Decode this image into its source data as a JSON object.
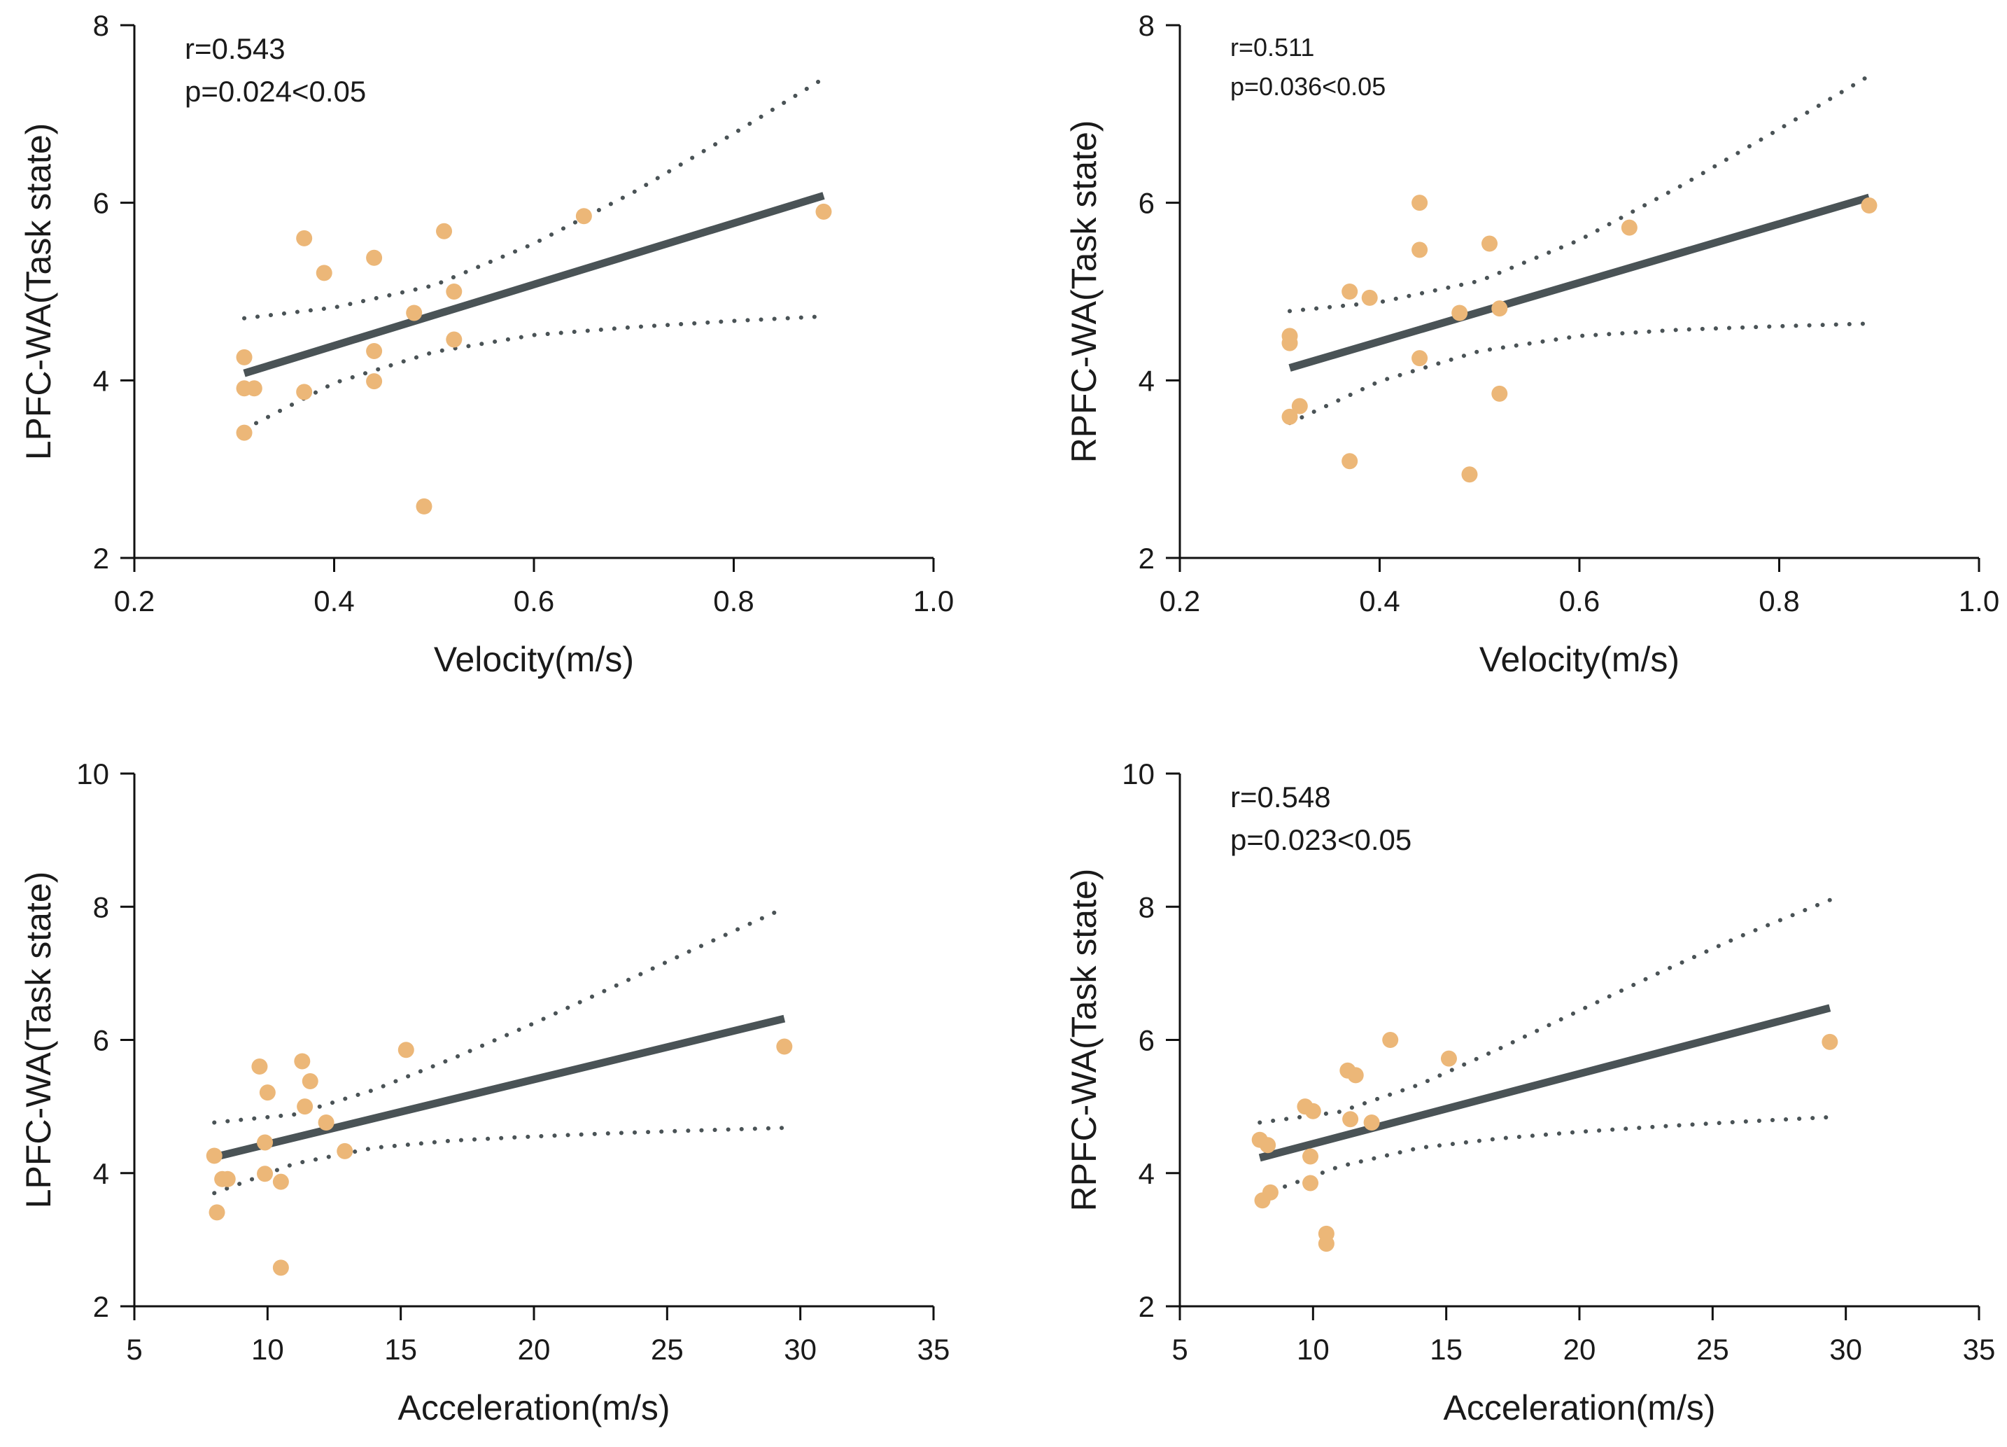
{
  "colors": {
    "point": "#ecb778",
    "line": "#4a5356",
    "axis": "#111111"
  },
  "chart_data": [
    {
      "type": "scatter",
      "xlabel": "Velocity(m/s)",
      "ylabel": "LPFC-WA(Task state)",
      "xlim": [
        0.2,
        1.0
      ],
      "ylim": [
        2,
        8
      ],
      "xticks": [
        0.2,
        0.4,
        0.6,
        0.8,
        1.0
      ],
      "xtick_labels": [
        "0.2",
        "0.4",
        "0.6",
        "0.8",
        "1.0"
      ],
      "yticks": [
        2,
        4,
        6,
        8
      ],
      "ytick_labels": [
        "2",
        "4",
        "6",
        "8"
      ],
      "annotations": [
        "r=0.543",
        "p=0.024<0.05"
      ],
      "annotation_size": "large",
      "points": [
        {
          "x": 0.31,
          "y": 4.26
        },
        {
          "x": 0.31,
          "y": 3.91
        },
        {
          "x": 0.32,
          "y": 3.91
        },
        {
          "x": 0.31,
          "y": 3.41
        },
        {
          "x": 0.37,
          "y": 5.6
        },
        {
          "x": 0.39,
          "y": 5.21
        },
        {
          "x": 0.37,
          "y": 3.87
        },
        {
          "x": 0.44,
          "y": 5.38
        },
        {
          "x": 0.44,
          "y": 4.33
        },
        {
          "x": 0.44,
          "y": 3.99
        },
        {
          "x": 0.48,
          "y": 4.76
        },
        {
          "x": 0.49,
          "y": 2.58
        },
        {
          "x": 0.51,
          "y": 5.68
        },
        {
          "x": 0.52,
          "y": 5.0
        },
        {
          "x": 0.52,
          "y": 4.46
        },
        {
          "x": 0.65,
          "y": 5.85
        },
        {
          "x": 0.89,
          "y": 5.9
        }
      ],
      "fit": {
        "x": [
          0.31,
          0.89
        ],
        "y": [
          4.08,
          6.08
        ]
      },
      "ci_upper": {
        "x": [
          0.31,
          0.4,
          0.5,
          0.6,
          0.7,
          0.8,
          0.89
        ],
        "y": [
          4.7,
          4.82,
          5.07,
          5.54,
          6.12,
          6.78,
          7.4
        ]
      },
      "ci_lower": {
        "x": [
          0.31,
          0.4,
          0.5,
          0.6,
          0.7,
          0.8,
          0.89
        ],
        "y": [
          3.45,
          3.97,
          4.32,
          4.51,
          4.6,
          4.67,
          4.72
        ]
      }
    },
    {
      "type": "scatter",
      "xlabel": "Velocity(m/s)",
      "ylabel": "RPFC-WA(Task state)",
      "xlim": [
        0.2,
        1.0
      ],
      "ylim": [
        2,
        8
      ],
      "xticks": [
        0.2,
        0.4,
        0.6,
        0.8,
        1.0
      ],
      "xtick_labels": [
        "0.2",
        "0.4",
        "0.6",
        "0.8",
        "1.0"
      ],
      "yticks": [
        2,
        4,
        6,
        8
      ],
      "ytick_labels": [
        "2",
        "4",
        "6",
        "8"
      ],
      "annotations": [
        "r=0.511",
        "p=0.036<0.05"
      ],
      "annotation_size": "small",
      "points": [
        {
          "x": 0.31,
          "y": 4.5
        },
        {
          "x": 0.31,
          "y": 4.42
        },
        {
          "x": 0.31,
          "y": 3.59
        },
        {
          "x": 0.32,
          "y": 3.71
        },
        {
          "x": 0.37,
          "y": 5.0
        },
        {
          "x": 0.37,
          "y": 3.09
        },
        {
          "x": 0.39,
          "y": 4.93
        },
        {
          "x": 0.44,
          "y": 6.0
        },
        {
          "x": 0.44,
          "y": 5.47
        },
        {
          "x": 0.44,
          "y": 4.25
        },
        {
          "x": 0.48,
          "y": 4.76
        },
        {
          "x": 0.49,
          "y": 2.94
        },
        {
          "x": 0.51,
          "y": 5.54
        },
        {
          "x": 0.52,
          "y": 4.81
        },
        {
          "x": 0.52,
          "y": 3.85
        },
        {
          "x": 0.65,
          "y": 5.72
        },
        {
          "x": 0.89,
          "y": 5.97
        }
      ],
      "fit": {
        "x": [
          0.31,
          0.89
        ],
        "y": [
          4.14,
          6.06
        ]
      },
      "ci_upper": {
        "x": [
          0.31,
          0.4,
          0.5,
          0.6,
          0.7,
          0.8,
          0.89
        ],
        "y": [
          4.78,
          4.88,
          5.12,
          5.58,
          6.18,
          6.83,
          7.43
        ]
      },
      "ci_lower": {
        "x": [
          0.31,
          0.4,
          0.5,
          0.6,
          0.7,
          0.8,
          0.89
        ],
        "y": [
          3.52,
          3.99,
          4.33,
          4.5,
          4.57,
          4.61,
          4.64
        ]
      }
    },
    {
      "type": "scatter",
      "xlabel": "Acceleration(m/s)",
      "ylabel": "LPFC-WA(Task state)",
      "xlim": [
        5,
        35
      ],
      "ylim": [
        2,
        10
      ],
      "xticks": [
        5,
        10,
        15,
        20,
        25,
        30,
        35
      ],
      "xtick_labels": [
        "5",
        "10",
        "15",
        "20",
        "25",
        "30",
        "35"
      ],
      "yticks": [
        2,
        4,
        6,
        8,
        10
      ],
      "ytick_labels": [
        "2",
        "4",
        "6",
        "8",
        "10"
      ],
      "annotations": [],
      "annotation_size": "large",
      "points": [
        {
          "x": 8.0,
          "y": 4.26
        },
        {
          "x": 8.1,
          "y": 3.41
        },
        {
          "x": 8.3,
          "y": 3.91
        },
        {
          "x": 8.5,
          "y": 3.91
        },
        {
          "x": 9.7,
          "y": 5.6
        },
        {
          "x": 9.9,
          "y": 4.46
        },
        {
          "x": 9.9,
          "y": 3.99
        },
        {
          "x": 10.0,
          "y": 5.21
        },
        {
          "x": 10.5,
          "y": 3.87
        },
        {
          "x": 10.5,
          "y": 2.58
        },
        {
          "x": 11.3,
          "y": 5.68
        },
        {
          "x": 11.4,
          "y": 5.0
        },
        {
          "x": 11.6,
          "y": 5.38
        },
        {
          "x": 12.2,
          "y": 4.76
        },
        {
          "x": 12.9,
          "y": 4.33
        },
        {
          "x": 15.2,
          "y": 5.85
        },
        {
          "x": 29.4,
          "y": 5.9
        }
      ],
      "fit": {
        "x": [
          8.0,
          29.4
        ],
        "y": [
          4.24,
          6.32
        ]
      },
      "ci_upper": {
        "x": [
          8.0,
          11.0,
          14.0,
          17.0,
          20.0,
          23.0,
          26.0,
          29.4
        ],
        "y": [
          4.76,
          4.88,
          5.25,
          5.73,
          6.25,
          6.8,
          7.36,
          7.98
        ]
      },
      "ci_lower": {
        "x": [
          8.0,
          11.0,
          14.0,
          17.0,
          20.0,
          23.0,
          26.0,
          29.4
        ],
        "y": [
          3.7,
          4.14,
          4.38,
          4.49,
          4.55,
          4.6,
          4.64,
          4.68
        ]
      }
    },
    {
      "type": "scatter",
      "xlabel": "Acceleration(m/s)",
      "ylabel": "RPFC-WA(Task state)",
      "xlim": [
        5,
        35
      ],
      "ylim": [
        2,
        10
      ],
      "xticks": [
        5,
        10,
        15,
        20,
        25,
        30,
        35
      ],
      "xtick_labels": [
        "5",
        "10",
        "15",
        "20",
        "25",
        "30",
        "35"
      ],
      "yticks": [
        2,
        4,
        6,
        8,
        10
      ],
      "ytick_labels": [
        "2",
        "4",
        "6",
        "8",
        "10"
      ],
      "annotations": [
        "r=0.548",
        "p=0.023<0.05"
      ],
      "annotation_size": "large",
      "points": [
        {
          "x": 8.0,
          "y": 4.5
        },
        {
          "x": 8.1,
          "y": 3.59
        },
        {
          "x": 8.3,
          "y": 4.42
        },
        {
          "x": 8.4,
          "y": 3.71
        },
        {
          "x": 9.7,
          "y": 5.0
        },
        {
          "x": 9.9,
          "y": 4.25
        },
        {
          "x": 9.9,
          "y": 3.85
        },
        {
          "x": 10.0,
          "y": 4.93
        },
        {
          "x": 10.5,
          "y": 3.09
        },
        {
          "x": 10.5,
          "y": 2.94
        },
        {
          "x": 11.3,
          "y": 5.54
        },
        {
          "x": 11.4,
          "y": 4.81
        },
        {
          "x": 11.6,
          "y": 5.47
        },
        {
          "x": 12.2,
          "y": 4.76
        },
        {
          "x": 12.9,
          "y": 6.0
        },
        {
          "x": 15.1,
          "y": 5.72
        },
        {
          "x": 29.4,
          "y": 5.97
        }
      ],
      "fit": {
        "x": [
          8.0,
          29.4
        ],
        "y": [
          4.23,
          6.48
        ]
      },
      "ci_upper": {
        "x": [
          8.0,
          11.0,
          14.0,
          17.0,
          20.0,
          23.0,
          26.0,
          29.4
        ],
        "y": [
          4.76,
          4.92,
          5.33,
          5.87,
          6.44,
          7.01,
          7.55,
          8.1
        ]
      },
      "ci_lower": {
        "x": [
          8.0,
          11.0,
          14.0,
          17.0,
          20.0,
          23.0,
          26.0,
          29.4
        ],
        "y": [
          3.66,
          4.1,
          4.38,
          4.52,
          4.62,
          4.7,
          4.77,
          4.84
        ]
      }
    }
  ]
}
